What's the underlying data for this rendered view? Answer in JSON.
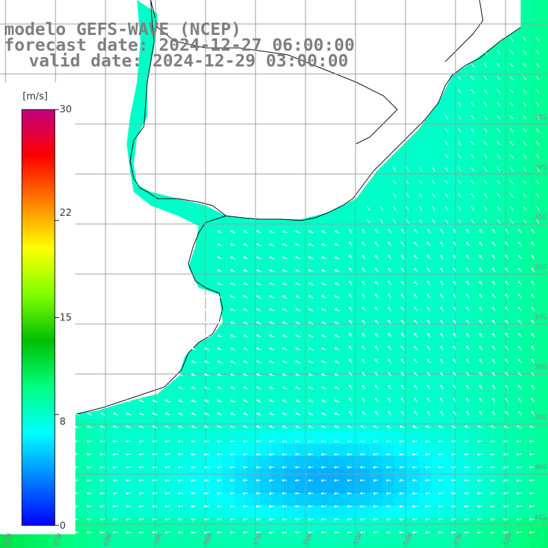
{
  "header": {
    "line1": "modelo GEFS-WAVE (NCEP)",
    "line2": "forecast date: 2024-12-27 06:00:00",
    "line3": "valid date: 2024-12-29 03:00:00"
  },
  "colorbar": {
    "unit": "[m/s]",
    "ticks": [
      "30",
      "22",
      "15",
      "8",
      "0"
    ],
    "tick_values": [
      30,
      22,
      15,
      8,
      0
    ],
    "range": [
      0,
      30
    ],
    "colors": [
      "#0000ff",
      "#0080ff",
      "#00ffff",
      "#00ff80",
      "#00c000",
      "#80ff00",
      "#ffff00",
      "#ff8000",
      "#ff0000",
      "#c00080"
    ]
  },
  "map": {
    "variable": "wind speed with direction arrows",
    "lat_labels": [
      "33S",
      "34S",
      "35S",
      "36S",
      "37S",
      "38S",
      "39S",
      "40S",
      "41S"
    ],
    "lon_labels": [
      "62W",
      "61W",
      "60W",
      "59W",
      "58W",
      "57W",
      "56W",
      "55W",
      "54W",
      "53W",
      "52W"
    ],
    "land_color": "#ffffff",
    "grid_color": "#9a9a9a"
  }
}
